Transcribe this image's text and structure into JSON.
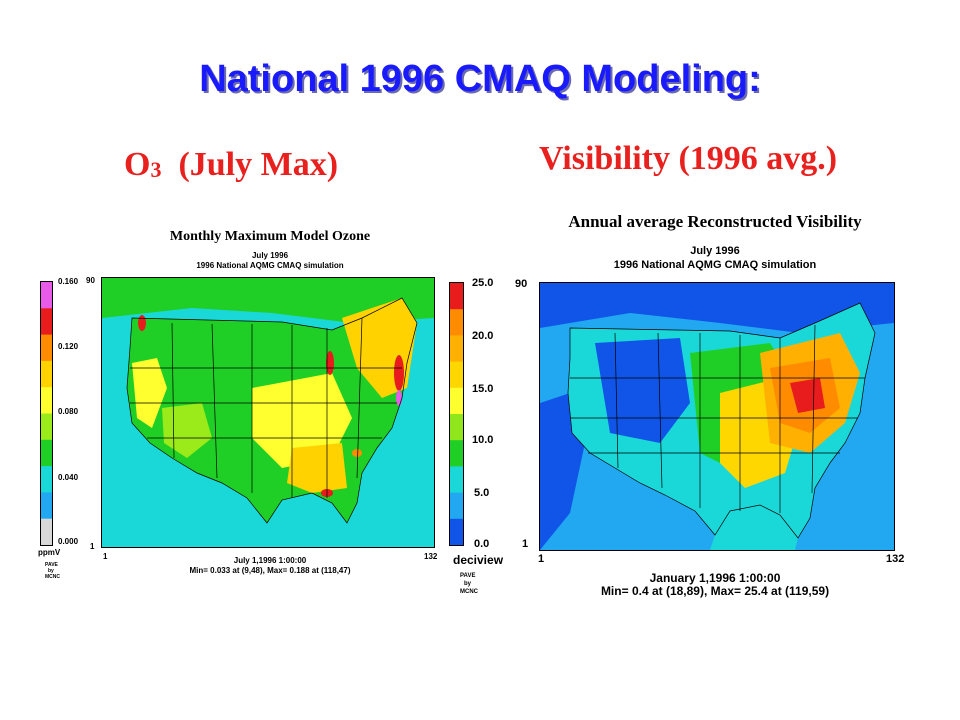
{
  "slide": {
    "title": "National 1996 CMAQ Modeling:",
    "o3_prefix": "O",
    "o3_sub": "3",
    "o3_suffix": "(July Max)",
    "vis_head": "Visibility  (1996 avg.)"
  },
  "left_panel": {
    "title": "Monthly Maximum Model Ozone",
    "subtitle1": "July 1996",
    "subtitle2": "1996 National AQMG CMAQ simulation",
    "y_top": "90",
    "y_bottom": "1",
    "x_left": "1",
    "x_right": "132",
    "colorbar_labels": [
      "0.160",
      "0.120",
      "0.080",
      "0.040",
      "0.000"
    ],
    "colorbar_colors": [
      "#e85ae8",
      "#e81c1c",
      "#ff8c00",
      "#ffd200",
      "#ffff30",
      "#9bea1a",
      "#1fcf25",
      "#1bd8d8",
      "#22a8f0",
      "#d8d8d8"
    ],
    "unit": "ppmV",
    "credit": [
      "PAVE",
      "by",
      "MCNC"
    ],
    "timestamp": "July 1,1996 1:00:00",
    "minmax": "Min=   0.033 at (9,48), Max=   0.188 at (118,47)"
  },
  "right_panel": {
    "title": "Annual average Reconstructed Visibility",
    "subtitle1": "July 1996",
    "subtitle2": "1996 National AQMG CMAQ simulation",
    "y_top": "90",
    "y_bottom": "1",
    "x_left": "1",
    "x_right": "132",
    "colorbar_labels": [
      "25.0",
      "20.0",
      "15.0",
      "10.0",
      "5.0",
      "0.0"
    ],
    "colorbar_colors": [
      "#e81c1c",
      "#ff8c00",
      "#ffb000",
      "#ffd700",
      "#ffff30",
      "#8fe61a",
      "#1fcf25",
      "#1bd8d8",
      "#22a8f0",
      "#1155e8"
    ],
    "unit": "deciview",
    "credit": [
      "PAVE",
      "by",
      "MCNC"
    ],
    "timestamp": "January 1,1996 1:00:00",
    "minmax": "Min=   0.4 at (18,89), Max=   25.4 at (119,59)"
  }
}
